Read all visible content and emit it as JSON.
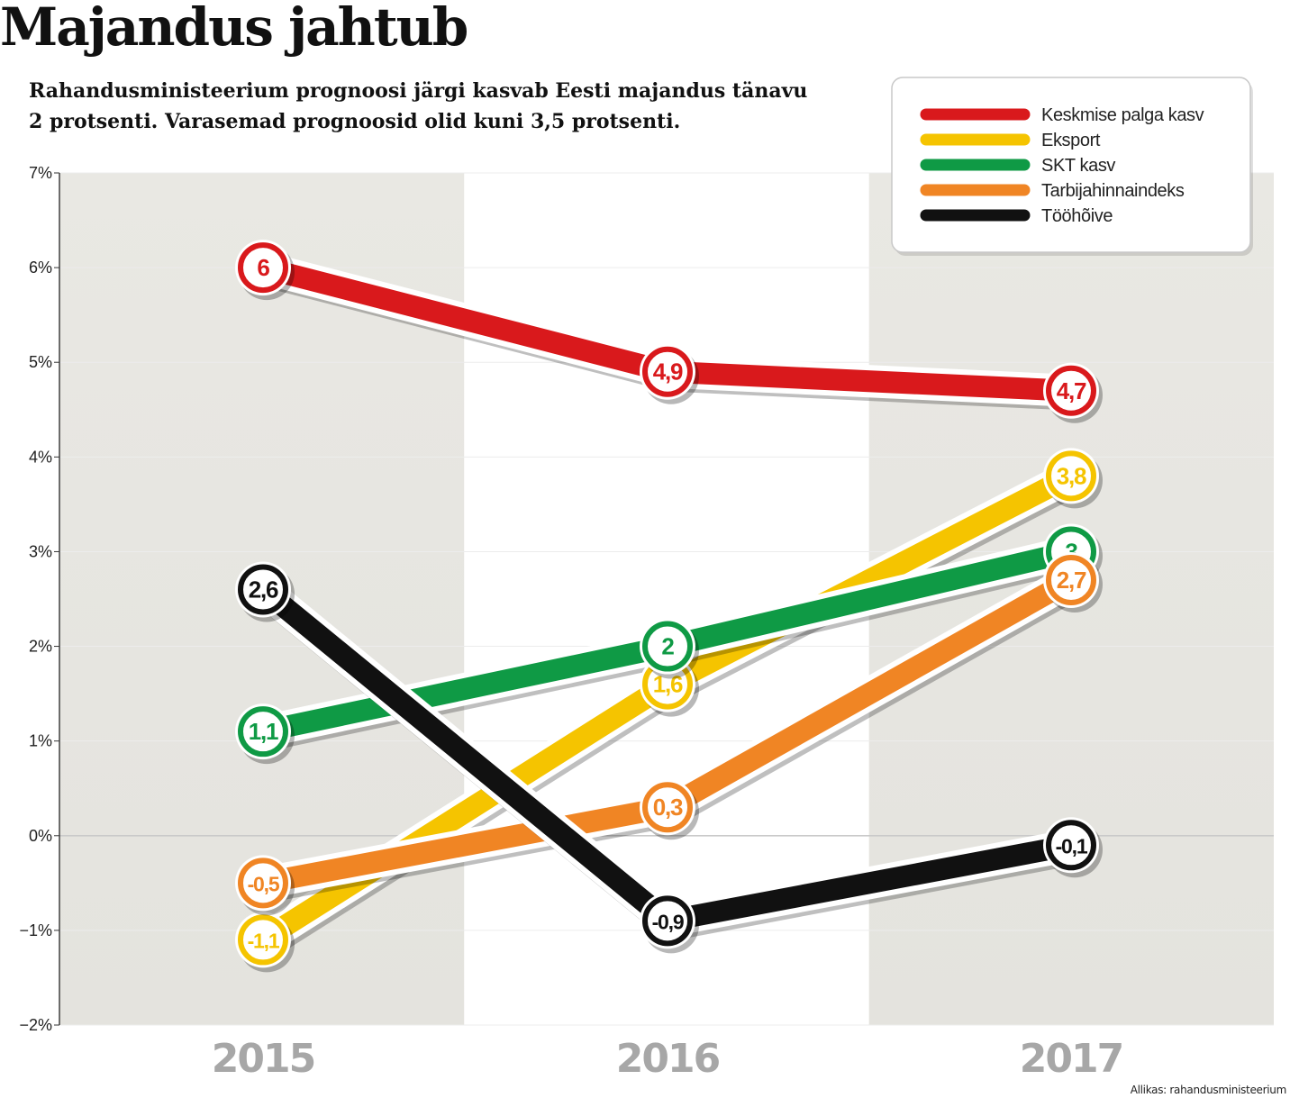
{
  "title": "Majandus jahtub",
  "subtitle_lines": [
    "Rahandusministeerium prognoosi järgi  kasvab Eesti majandus tänavu",
    "2 protsenti. Varasemad prognoosid olid kuni  3,5 protsenti."
  ],
  "source": "Allikas: rahandusministeerium",
  "chart_data": {
    "type": "line",
    "categories": [
      "2015",
      "2016",
      "2017"
    ],
    "ylim": [
      -2,
      7
    ],
    "yticks": [
      -2,
      -1,
      0,
      1,
      2,
      3,
      4,
      5,
      6,
      7
    ],
    "ytick_labels": [
      "−2%",
      "−1%",
      "0%",
      "1%",
      "2%",
      "3%",
      "4%",
      "5%",
      "6%",
      "7%"
    ],
    "grid": true,
    "legend_position": "top-right",
    "series": [
      {
        "name": "Keskmise palga kasv",
        "color": "#d9191c",
        "values": [
          6,
          4.9,
          4.7
        ],
        "labels": [
          "6",
          "4,9",
          "4,7"
        ]
      },
      {
        "name": "Eksport",
        "color": "#f5c400",
        "values": [
          -1.1,
          1.6,
          3.8
        ],
        "labels": [
          "-1,1",
          "1,6",
          "3,8"
        ]
      },
      {
        "name": "SKT kasv",
        "color": "#0f9a45",
        "values": [
          1.1,
          2,
          3
        ],
        "labels": [
          "1,1",
          "2",
          "3"
        ]
      },
      {
        "name": "Tarbijahinnaindeks",
        "color": "#f08524",
        "values": [
          -0.5,
          0.3,
          2.7
        ],
        "labels": [
          "-0,5",
          "0,3",
          "2,7"
        ]
      },
      {
        "name": "Tööhõive",
        "color": "#111111",
        "values": [
          2.6,
          -0.9,
          -0.1
        ],
        "labels": [
          "2,6",
          "-0,9",
          "-0,1"
        ]
      }
    ]
  }
}
